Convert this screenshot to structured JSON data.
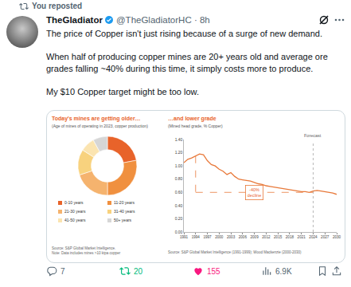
{
  "tweet": {
    "repost_label": "You reposted",
    "name": "TheGladiator",
    "handle_time": "@TheGladiatorHC · 8h",
    "paragraphs": [
      "The price of Copper isn't just rising because of a surge of new demand.",
      "When half of producing copper mines are 20+ years old and average ore grades falling ~40% during this time, it simply costs more to produce.",
      "My $10 Copper target might be too low."
    ],
    "stats": {
      "replies": "7",
      "reposts": "20",
      "likes": "155",
      "views": "6.9K"
    }
  },
  "chart_data": [
    {
      "type": "pie",
      "title": "Today's mines are getting older…",
      "subtitle": "(Age of mines of operating in 2023, copper production)",
      "categories": [
        "0-10 years",
        "11-20 years",
        "21-30 years",
        "31-40 years",
        "41-50 years",
        "50+ years"
      ],
      "values": [
        22,
        28,
        20,
        14,
        8,
        8
      ],
      "colors": [
        "#e8632a",
        "#f0903f",
        "#f5b36e",
        "#f8d27e",
        "#fbe4b0",
        "#d6d6d6"
      ],
      "legend": "bottom",
      "source": "Source: S&P Global Market Intelligence.",
      "note": "Note: Data includes mines >10 ktpa copper"
    },
    {
      "type": "line",
      "title": "…and lower grade",
      "subtitle": "(Mined head grade, % Copper)",
      "x": [
        1991,
        1992,
        1993,
        1994,
        1995,
        1996,
        1997,
        1998,
        1999,
        2000,
        2001,
        2002,
        2003,
        2004,
        2005,
        2006,
        2007,
        2008,
        2009,
        2010,
        2011,
        2012,
        2013,
        2014,
        2015,
        2016,
        2017,
        2018,
        2019,
        2020,
        2021,
        2022,
        2023,
        2024,
        2025,
        2026,
        2027,
        2028,
        2029,
        2030
      ],
      "values": [
        1.05,
        1.1,
        1.12,
        1.15,
        1.18,
        1.17,
        1.08,
        1.02,
        1.0,
        0.95,
        0.92,
        0.87,
        0.9,
        0.84,
        0.8,
        0.79,
        0.78,
        0.77,
        0.75,
        0.73,
        0.72,
        0.7,
        0.69,
        0.68,
        0.67,
        0.66,
        0.65,
        0.64,
        0.63,
        0.62,
        0.61,
        0.61,
        0.6,
        0.62,
        0.63,
        0.62,
        0.61,
        0.6,
        0.59,
        0.57
      ],
      "color": "#e8793a",
      "xlim": [
        1991,
        2030
      ],
      "xticks": [
        1991,
        1994,
        1997,
        2000,
        2003,
        2006,
        2009,
        2012,
        2015,
        2018,
        2021,
        2024,
        2027,
        2030
      ],
      "ylim": [
        0,
        1.4
      ],
      "yticks": [
        {
          "value": 0,
          "label": "0.00"
        },
        {
          "value": 0.2,
          "label": "0.20"
        },
        {
          "value": 0.4,
          "label": "0.40"
        },
        {
          "value": 0.6,
          "label": "0.60"
        },
        {
          "value": 0.8,
          "label": "0.80"
        },
        {
          "value": 1.0,
          "label": "1.00"
        },
        {
          "value": 1.2,
          "label": "1.20"
        },
        {
          "value": 1.4,
          "label": "1.40"
        }
      ],
      "grid": false,
      "forecast": {
        "x": 2024,
        "label": "Forecast"
      },
      "annotation": {
        "text": [
          "-40%",
          "decline"
        ],
        "x": [
          1994,
          2024
        ],
        "y": [
          1.15,
          0.6
        ]
      },
      "source": "Source: S&P Global Market Intelligence (1991-1999); Wood Mackenzie (2000-2030)"
    }
  ]
}
